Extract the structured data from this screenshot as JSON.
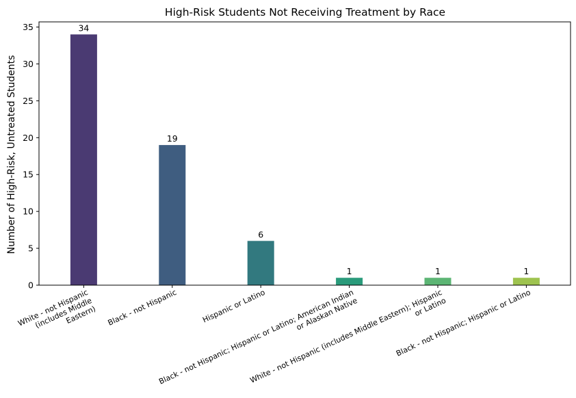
{
  "chart_data": {
    "type": "bar",
    "title": "High-Risk Students Not Receiving Treatment by Race",
    "xlabel": "",
    "ylabel": "Number of High-Risk, Untreated Students",
    "categories": [
      [
        "White - not Hispanic",
        "(includes Middle",
        "Eastern)"
      ],
      [
        "Black - not Hispanic"
      ],
      [
        "Hispanic or Latino"
      ],
      [
        "Black - not Hispanic; Hispanic or Latino; American Indian",
        "or Alaskan Native"
      ],
      [
        "White - not Hispanic (includes Middle Eastern); Hispanic",
        "or Latino"
      ],
      [
        "Black - not Hispanic; Hispanic or Latino"
      ]
    ],
    "values": [
      34,
      19,
      6,
      1,
      1,
      1
    ],
    "data_labels": [
      "34",
      "19",
      "6",
      "1",
      "1",
      "1"
    ],
    "colors": [
      "#4a3a72",
      "#3f5d80",
      "#32797f",
      "#2a9b7b",
      "#5cb574",
      "#9ec34f"
    ],
    "ylim": [
      0,
      35.7
    ],
    "yticks": [
      0,
      5,
      10,
      15,
      20,
      25,
      30,
      35
    ],
    "grid": false,
    "legend": "none"
  }
}
